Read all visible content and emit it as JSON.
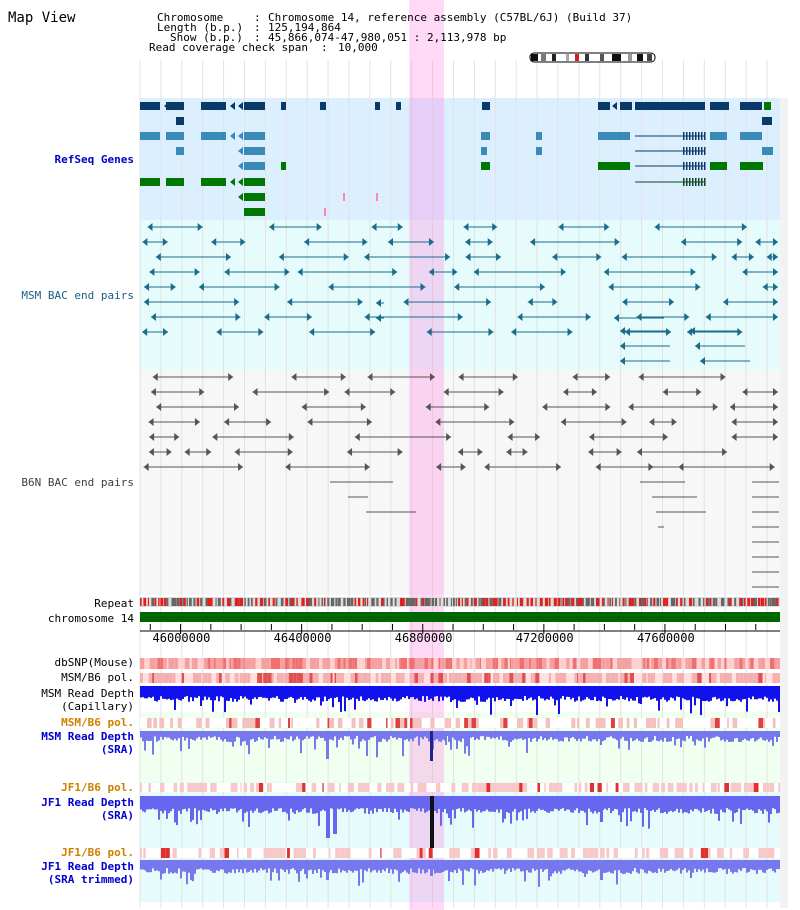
{
  "page": {
    "title": "Map View"
  },
  "header": {
    "chromosome_label": "Chromosome",
    "chromosome_value": "Chromosome 14, reference assembly (C57BL/6J) (Build 37)",
    "length_label": "Length (b.p.)",
    "length_value": "125,194,864",
    "show_label": "Show (b.p.)",
    "show_value": "45,866,074-47,980,051 : 2,113,978 bp",
    "coverage_label": "Read coverage check span",
    "coverage_value": "10,000"
  },
  "view": {
    "start": 45866074,
    "end": 47980051,
    "highlight_start": 46755000,
    "highlight_end": 46870000
  },
  "axis": {
    "ticks": [
      {
        "pos": 46000000,
        "label": "46000000"
      },
      {
        "pos": 46400000,
        "label": "46400000"
      },
      {
        "pos": 46800000,
        "label": "46800000"
      },
      {
        "pos": 47200000,
        "label": "47200000"
      },
      {
        "pos": 47600000,
        "label": "47600000"
      }
    ]
  },
  "tracks": {
    "refseq": {
      "label": "RefSeq Genes",
      "color": "#0000cc",
      "colors": {
        "dark": "#0a3a6a",
        "mid": "#3a8ab8",
        "green": "#007700"
      }
    },
    "msm_bac": {
      "label": "MSM BAC end pairs",
      "color": "#1a5f7f",
      "line": "#1a6d8a"
    },
    "b6n_bac": {
      "label": "B6N BAC end pairs",
      "color": "#404040",
      "line": "#555555"
    },
    "repeat": {
      "label": "Repeat",
      "color": "#000000"
    },
    "chromosome": {
      "label": "chromosome 14",
      "color": "#000000",
      "bar": "#006600"
    },
    "dbsnp": {
      "label": "dbSNP(Mouse)",
      "color": "#000000"
    },
    "msm_b6_pol_1": {
      "label": "MSM/B6 pol.",
      "color": "#000000"
    },
    "msm_depth_cap": {
      "label1": "MSM Read Depth",
      "label2": "(Capillary)",
      "color": "#000000"
    },
    "msm_b6_pol_2": {
      "label": "MSM/B6 pol.",
      "color": "#d08000"
    },
    "msm_depth_sra": {
      "label1": "MSM Read Depth",
      "label2": "(SRA)",
      "color": "#0000cc"
    },
    "jf1_b6_pol_1": {
      "label": "JF1/B6 pol.",
      "color": "#d08000"
    },
    "jf1_depth_sra": {
      "label1": "JF1 Read Depth",
      "label2": "(SRA)",
      "color": "#0000cc"
    },
    "jf1_b6_pol_2": {
      "label": "JF1/B6 pol.",
      "color": "#d08000"
    },
    "jf1_depth_trim": {
      "label1": "JF1 Read Depth",
      "label2": "(SRA trimmed)",
      "color": "#0000cc"
    }
  }
}
